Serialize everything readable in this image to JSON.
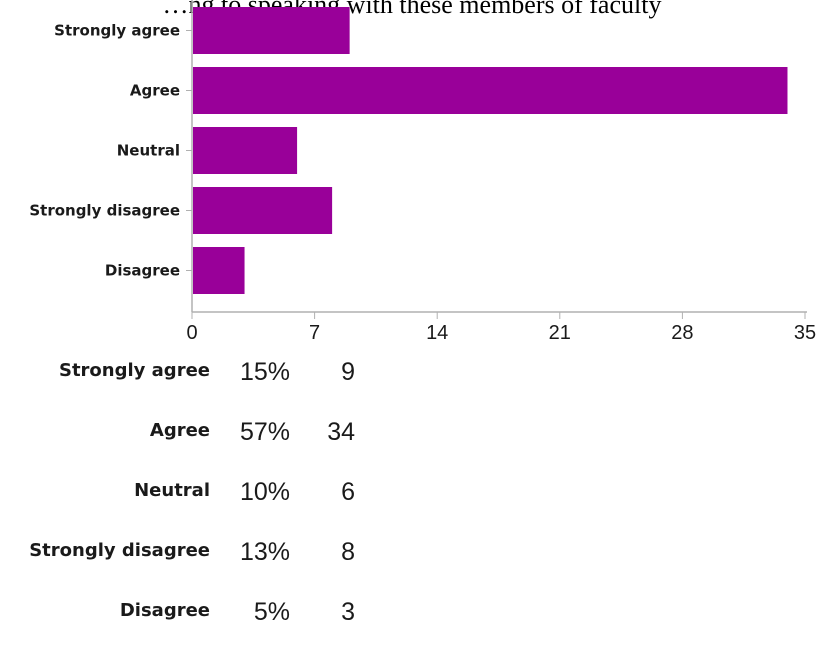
{
  "chart_data": {
    "type": "bar",
    "orientation": "horizontal",
    "title": "…ng to speaking with these members of faculty",
    "categories": [
      "Strongly agree",
      "Agree",
      "Neutral",
      "Strongly disagree",
      "Disagree"
    ],
    "values": [
      9,
      34,
      6,
      8,
      3
    ],
    "xlim": [
      0,
      35
    ],
    "xticks": [
      "0",
      "7",
      "14",
      "21",
      "28",
      "35"
    ],
    "bar_color": "#990099",
    "grid": false
  },
  "summary": [
    {
      "label": "Strongly agree",
      "percent": "15%",
      "count": "9"
    },
    {
      "label": "Agree",
      "percent": "57%",
      "count": "34"
    },
    {
      "label": "Neutral",
      "percent": "10%",
      "count": "6"
    },
    {
      "label": "Strongly disagree",
      "percent": "13%",
      "count": "8"
    },
    {
      "label": "Disagree",
      "percent": "5%",
      "count": "3"
    }
  ]
}
